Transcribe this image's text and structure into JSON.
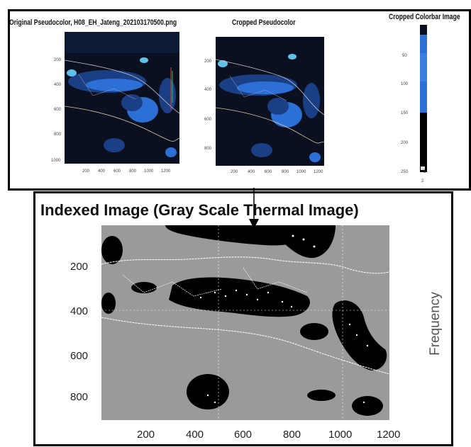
{
  "top_panel": {
    "original_title": "Original Pseudocolor, H08_EH_Jateng_202103170500.png",
    "cropped_title": "Cropped Pseudocolor",
    "colorbar_title": "Cropped Colorbar Image",
    "original_yticks": [
      "200",
      "400",
      "600",
      "800",
      "1000"
    ],
    "original_xticks": [
      "200",
      "400",
      "600",
      "800",
      "1000",
      "1200"
    ],
    "cropped_yticks": [
      "200",
      "400",
      "600",
      "800"
    ],
    "cropped_xticks": [
      "200",
      "400",
      "600",
      "800",
      "1000",
      "1200"
    ],
    "colorbar_ticks": [
      "50",
      "100",
      "150",
      "200",
      "250"
    ],
    "colorbar_bottom_labels": [
      "5",
      "2"
    ]
  },
  "bottom_panel": {
    "title": "Indexed Image (Gray Scale Thermal Image)",
    "yticks": [
      "200",
      "400",
      "600",
      "800"
    ],
    "xticks": [
      "200",
      "400",
      "600",
      "800",
      "1000",
      "1200"
    ],
    "side_label": "Frequency"
  },
  "colors": {
    "satellite_dark": "#0a1020",
    "satellite_blue": "#2c6fd6",
    "satellite_cyan": "#5fc0e8",
    "gray_background": "#9a9a9a",
    "cloud_black": "#000000",
    "border": "#000000"
  }
}
